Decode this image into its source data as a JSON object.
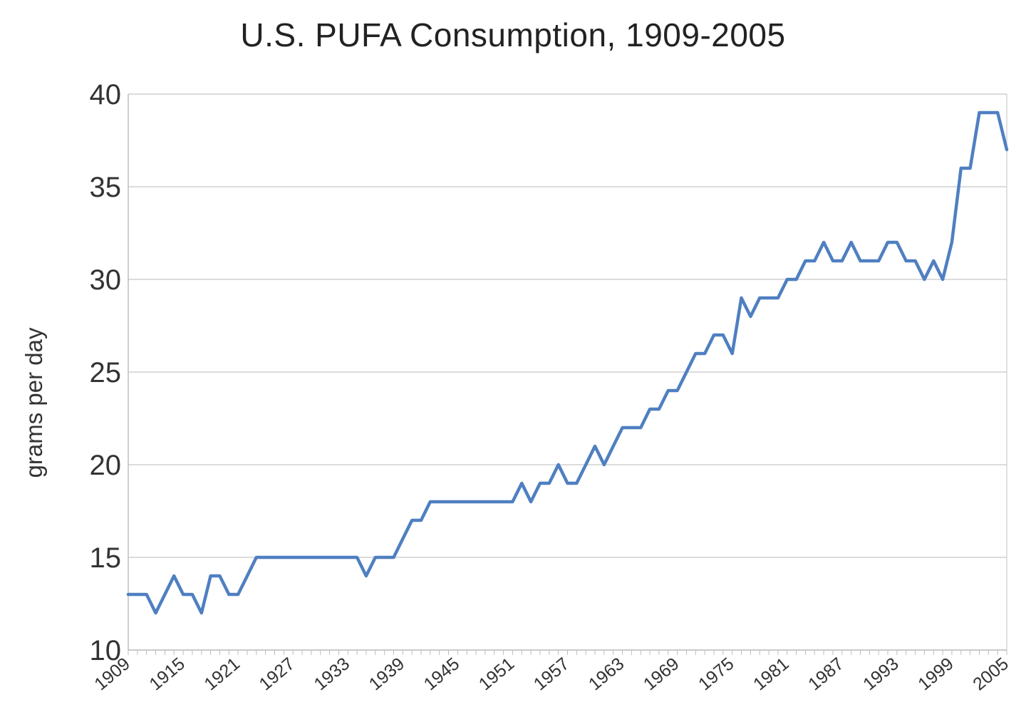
{
  "chart_data": {
    "type": "line",
    "title": "U.S. PUFA Consumption, 1909-2005",
    "xlabel": "",
    "ylabel": "grams per day",
    "ylim": [
      10,
      40
    ],
    "yticks": [
      10,
      15,
      20,
      25,
      30,
      35,
      40
    ],
    "xlim": [
      1909,
      2005
    ],
    "xticks": [
      1909,
      1915,
      1921,
      1927,
      1933,
      1939,
      1945,
      1951,
      1957,
      1963,
      1969,
      1975,
      1981,
      1987,
      1993,
      1999,
      2005
    ],
    "grid": true,
    "legend": "none",
    "series": [
      {
        "name": "PUFA",
        "color": "#4F7FC1",
        "x": [
          1909,
          1911,
          1912,
          1913,
          1914,
          1915,
          1916,
          1917,
          1918,
          1919,
          1920,
          1921,
          1922,
          1923,
          1924,
          1925,
          1926,
          1927,
          1928,
          1929,
          1930,
          1931,
          1932,
          1933,
          1934,
          1935,
          1936,
          1937,
          1938,
          1939,
          1940,
          1941,
          1942,
          1943,
          1944,
          1945,
          1946,
          1947,
          1948,
          1949,
          1950,
          1951,
          1952,
          1953,
          1954,
          1955,
          1956,
          1957,
          1958,
          1959,
          1960,
          1961,
          1962,
          1963,
          1964,
          1965,
          1966,
          1967,
          1968,
          1969,
          1970,
          1971,
          1972,
          1973,
          1974,
          1975,
          1976,
          1977,
          1978,
          1979,
          1980,
          1981,
          1982,
          1983,
          1984,
          1985,
          1986,
          1987,
          1988,
          1989,
          1990,
          1991,
          1992,
          1993,
          1994,
          1995,
          1996,
          1997,
          1998,
          1999,
          2000,
          2001,
          2002,
          2003,
          2004,
          2005
        ],
        "y": [
          13,
          13,
          12,
          13,
          14,
          13,
          13,
          12,
          14,
          14,
          13,
          13,
          14,
          15,
          15,
          15,
          15,
          15,
          15,
          15,
          15,
          15,
          15,
          15,
          15,
          14,
          15,
          15,
          15,
          16,
          17,
          17,
          18,
          18,
          18,
          18,
          18,
          18,
          18,
          18,
          18,
          18,
          19,
          18,
          19,
          19,
          20,
          19,
          19,
          20,
          21,
          20,
          21,
          22,
          22,
          22,
          23,
          23,
          24,
          24,
          25,
          26,
          26,
          27,
          27,
          26,
          29,
          28,
          29,
          29,
          29,
          30,
          30,
          31,
          31,
          32,
          31,
          31,
          32,
          31,
          31,
          31,
          32,
          32,
          31,
          31,
          30,
          31,
          30,
          32,
          36,
          36,
          39,
          39,
          39,
          37
        ]
      }
    ]
  }
}
